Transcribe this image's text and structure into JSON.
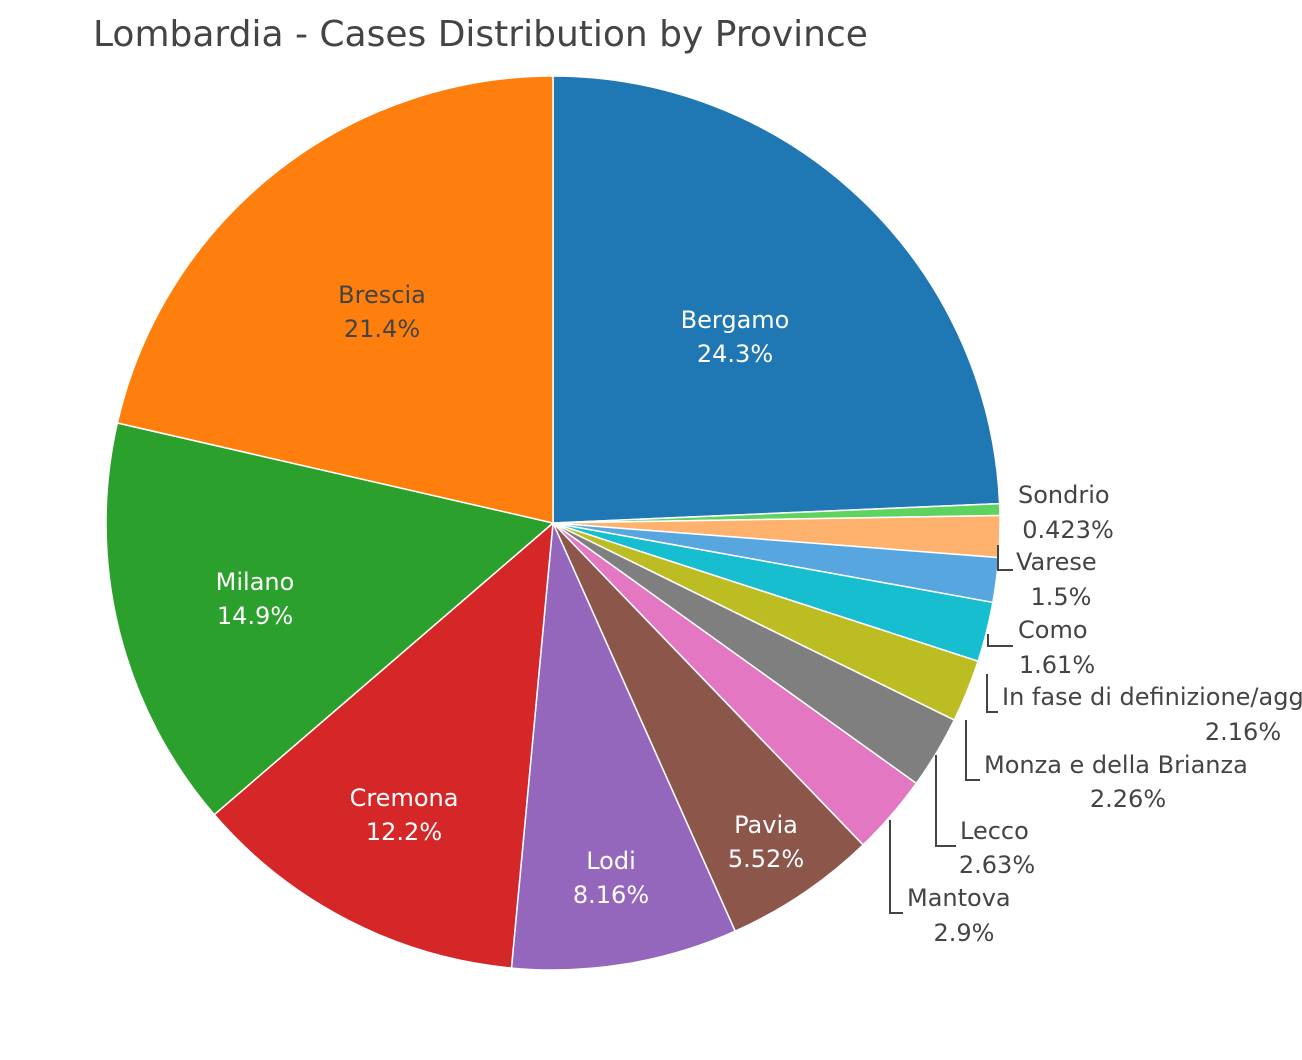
{
  "chart_data": {
    "type": "pie",
    "title": "Lombardia - Cases Distribution by Province",
    "slices": [
      {
        "name": "Bergamo",
        "percent_label": "24.3%",
        "value": 24.3,
        "color": "#1f77b4",
        "label_color": "#ffffff"
      },
      {
        "name": "Sondrio",
        "percent_label": "0.423%",
        "value": 0.423,
        "color": "#5fd35f",
        "label_color": "#444444"
      },
      {
        "name": "Varese",
        "percent_label": "1.5%",
        "value": 1.5,
        "color": "#ffb26e",
        "label_color": "#444444"
      },
      {
        "name": "Como",
        "percent_label": "1.61%",
        "value": 1.61,
        "color": "#57a6e0",
        "label_color": "#444444"
      },
      {
        "name": "In fase di definizione/aggiornamento",
        "percent_label": "2.16%",
        "value": 2.16,
        "color": "#17becf",
        "label_color": "#444444"
      },
      {
        "name": "Monza e della Brianza",
        "percent_label": "2.26%",
        "value": 2.26,
        "color": "#bcbd22",
        "label_color": "#444444"
      },
      {
        "name": "Lecco",
        "percent_label": "2.63%",
        "value": 2.63,
        "color": "#7f7f7f",
        "label_color": "#444444"
      },
      {
        "name": "Mantova",
        "percent_label": "2.9%",
        "value": 2.9,
        "color": "#e377c2",
        "label_color": "#444444"
      },
      {
        "name": "Pavia",
        "percent_label": "5.52%",
        "value": 5.52,
        "color": "#8c564b",
        "label_color": "#ffffff"
      },
      {
        "name": "Lodi",
        "percent_label": "8.16%",
        "value": 8.16,
        "color": "#9467bd",
        "label_color": "#ffffff"
      },
      {
        "name": "Cremona",
        "percent_label": "12.2%",
        "value": 12.2,
        "color": "#d62728",
        "label_color": "#ffffff"
      },
      {
        "name": "Milano",
        "percent_label": "14.9%",
        "value": 14.9,
        "color": "#2ca02c",
        "label_color": "#ffffff"
      },
      {
        "name": "Brescia",
        "percent_label": "21.4%",
        "value": 21.4,
        "color": "#ff7f0e",
        "label_color": "#444444"
      }
    ],
    "direction": "clockwise",
    "legend": "none"
  }
}
